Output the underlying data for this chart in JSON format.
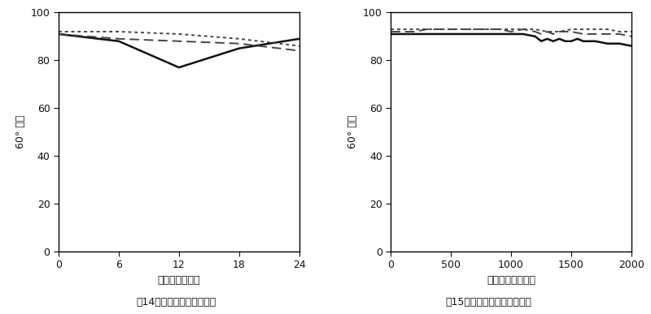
{
  "fig14": {
    "title": "图14－汽车涂料、户外老化",
    "xlabel": "曝晒时间（月）",
    "ylabel": "60° 光泽",
    "xlim": [
      0,
      24
    ],
    "ylim": [
      0,
      100
    ],
    "xticks": [
      0,
      6,
      12,
      18,
      24
    ],
    "yticks": [
      0,
      20,
      40,
      60,
      80,
      100
    ],
    "lines": [
      {
        "x": [
          0,
          6,
          12,
          18,
          24
        ],
        "y": [
          91,
          88,
          77,
          85,
          89
        ],
        "style": "solid",
        "color": "#111111",
        "linewidth": 1.8
      },
      {
        "x": [
          0,
          6,
          12,
          18,
          24
        ],
        "y": [
          91,
          89,
          88,
          87,
          84
        ],
        "style": "dashed",
        "color": "#444444",
        "linewidth": 1.4,
        "dashes": [
          6,
          3
        ]
      },
      {
        "x": [
          0,
          6,
          12,
          18,
          24
        ],
        "y": [
          92,
          92,
          91,
          89,
          86
        ],
        "style": "dotted",
        "color": "#444444",
        "linewidth": 1.4,
        "dashes": [
          2,
          2
        ]
      }
    ]
  },
  "fig15": {
    "title": "图15－汽车涂料、实验室老化",
    "xlabel": "曝晒时间（小时）",
    "ylabel": "60° 光泽",
    "xlim": [
      0,
      2000
    ],
    "ylim": [
      0,
      100
    ],
    "xticks": [
      0,
      500,
      1000,
      1500,
      2000
    ],
    "yticks": [
      0,
      20,
      40,
      60,
      80,
      100
    ],
    "lines": [
      {
        "x": [
          0,
          100,
          200,
          300,
          400,
          500,
          600,
          700,
          800,
          900,
          1000,
          1100,
          1200,
          1250,
          1300,
          1350,
          1400,
          1450,
          1500,
          1550,
          1600,
          1700,
          1800,
          1900,
          2000
        ],
        "y": [
          91,
          91,
          91,
          91,
          91,
          91,
          91,
          91,
          91,
          91,
          91,
          91,
          90,
          88,
          89,
          88,
          89,
          88,
          88,
          89,
          88,
          88,
          87,
          87,
          86
        ],
        "style": "solid",
        "color": "#111111",
        "linewidth": 1.8
      },
      {
        "x": [
          0,
          100,
          200,
          300,
          400,
          500,
          600,
          700,
          800,
          900,
          1000,
          1100,
          1200,
          1250,
          1300,
          1350,
          1400,
          1500,
          1600,
          1700,
          1800,
          1900,
          2000
        ],
        "y": [
          92,
          92,
          92,
          93,
          93,
          93,
          93,
          93,
          93,
          93,
          92,
          93,
          92,
          91,
          92,
          91,
          92,
          92,
          91,
          91,
          91,
          91,
          90
        ],
        "style": "dashed",
        "color": "#444444",
        "linewidth": 1.4,
        "dashes": [
          6,
          3
        ]
      },
      {
        "x": [
          0,
          100,
          200,
          300,
          400,
          500,
          600,
          700,
          800,
          900,
          1000,
          1100,
          1200,
          1300,
          1400,
          1500,
          1600,
          1700,
          1800,
          1900,
          2000
        ],
        "y": [
          93,
          93,
          93,
          93,
          93,
          93,
          93,
          93,
          93,
          93,
          93,
          93,
          93,
          92,
          92,
          93,
          93,
          93,
          93,
          92,
          92
        ],
        "style": "dotted",
        "color": "#444444",
        "linewidth": 1.4,
        "dashes": [
          2,
          2
        ]
      }
    ]
  },
  "bg_color": "#ffffff",
  "plot_bg_color": "#ffffff",
  "border_color": "#000000",
  "font_color": "#111111",
  "title_fontsize": 9,
  "label_fontsize": 9,
  "tick_fontsize": 9
}
